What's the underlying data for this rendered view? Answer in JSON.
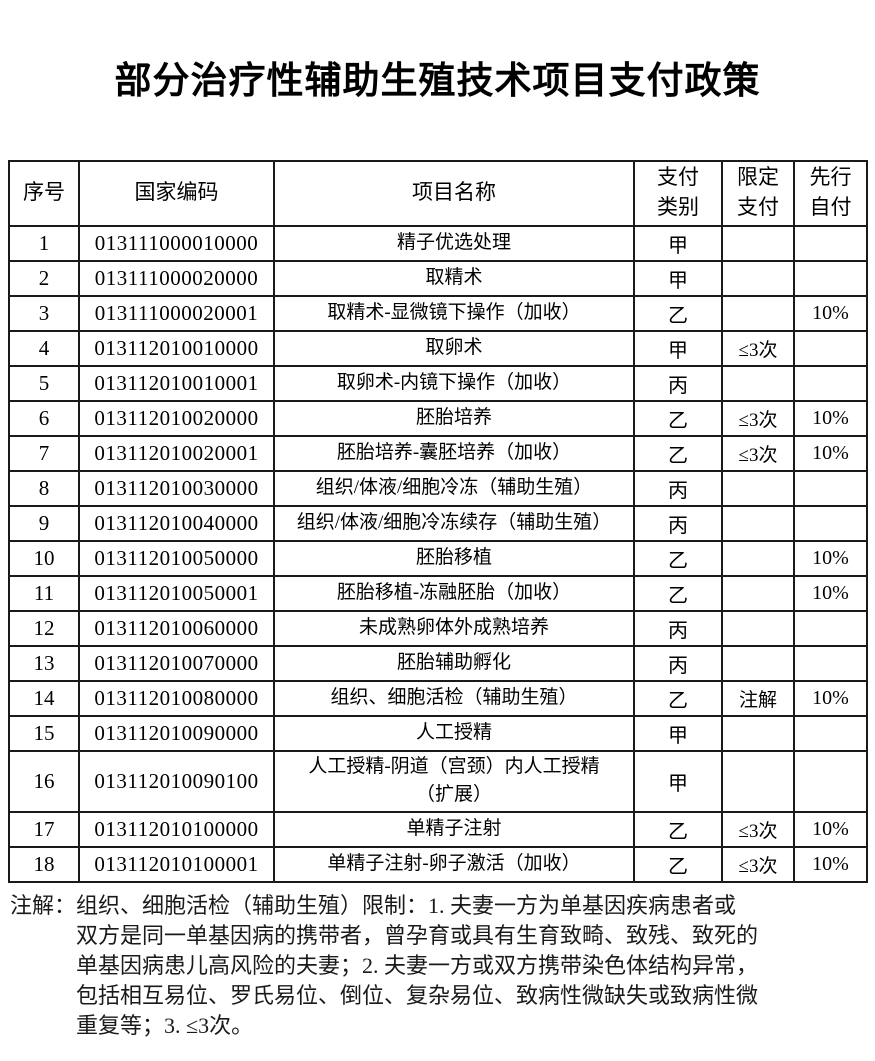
{
  "title": "部分治疗性辅助生殖技术项目支付政策",
  "table": {
    "headers": [
      "序号",
      "国家编码",
      "项目名称",
      "支付\n类别",
      "限定\n支付",
      "先行\n自付"
    ],
    "rows": [
      {
        "no": "1",
        "code": "013111000010000",
        "name": "精子优选处理",
        "pay_class": "甲",
        "limit": "",
        "self_pay": ""
      },
      {
        "no": "2",
        "code": "013111000020000",
        "name": "取精术",
        "pay_class": "甲",
        "limit": "",
        "self_pay": ""
      },
      {
        "no": "3",
        "code": "013111000020001",
        "name": "取精术-显微镜下操作（加收）",
        "pay_class": "乙",
        "limit": "",
        "self_pay": "10%"
      },
      {
        "no": "4",
        "code": "013112010010000",
        "name": "取卵术",
        "pay_class": "甲",
        "limit": "≤3次",
        "self_pay": ""
      },
      {
        "no": "5",
        "code": "013112010010001",
        "name": "取卵术-内镜下操作（加收）",
        "pay_class": "丙",
        "limit": "",
        "self_pay": ""
      },
      {
        "no": "6",
        "code": "013112010020000",
        "name": "胚胎培养",
        "pay_class": "乙",
        "limit": "≤3次",
        "self_pay": "10%"
      },
      {
        "no": "7",
        "code": "013112010020001",
        "name": "胚胎培养-囊胚培养（加收）",
        "pay_class": "乙",
        "limit": "≤3次",
        "self_pay": "10%"
      },
      {
        "no": "8",
        "code": "013112010030000",
        "name": "组织/体液/细胞冷冻（辅助生殖）",
        "pay_class": "丙",
        "limit": "",
        "self_pay": ""
      },
      {
        "no": "9",
        "code": "013112010040000",
        "name": "组织/体液/细胞冷冻续存（辅助生殖）",
        "pay_class": "丙",
        "limit": "",
        "self_pay": ""
      },
      {
        "no": "10",
        "code": "013112010050000",
        "name": "胚胎移植",
        "pay_class": "乙",
        "limit": "",
        "self_pay": "10%"
      },
      {
        "no": "11",
        "code": "013112010050001",
        "name": "胚胎移植-冻融胚胎（加收）",
        "pay_class": "乙",
        "limit": "",
        "self_pay": "10%"
      },
      {
        "no": "12",
        "code": "013112010060000",
        "name": "未成熟卵体外成熟培养",
        "pay_class": "丙",
        "limit": "",
        "self_pay": ""
      },
      {
        "no": "13",
        "code": "013112010070000",
        "name": "胚胎辅助孵化",
        "pay_class": "丙",
        "limit": "",
        "self_pay": ""
      },
      {
        "no": "14",
        "code": "013112010080000",
        "name": "组织、细胞活检（辅助生殖）",
        "pay_class": "乙",
        "limit": "注解",
        "self_pay": "10%"
      },
      {
        "no": "15",
        "code": "013112010090000",
        "name": "人工授精",
        "pay_class": "甲",
        "limit": "",
        "self_pay": ""
      },
      {
        "no": "16",
        "code": "013112010090100",
        "name": "人工授精-阴道（宫颈）内人工授精\n（扩展）",
        "pay_class": "甲",
        "limit": "",
        "self_pay": ""
      },
      {
        "no": "17",
        "code": "013112010100000",
        "name": "单精子注射",
        "pay_class": "乙",
        "limit": "≤3次",
        "self_pay": "10%"
      },
      {
        "no": "18",
        "code": "013112010100001",
        "name": "单精子注射-卵子激活（加收）",
        "pay_class": "乙",
        "limit": "≤3次",
        "self_pay": "10%"
      }
    ]
  },
  "note": {
    "label": "注解：",
    "text": "组织、细胞活检（辅助生殖）限制：1. 夫妻一方为单基因疾病患者或\n双方是同一单基因病的携带者，曾孕育或具有生育致畸、致残、致死的\n单基因病患儿高风险的夫妻；2. 夫妻一方或双方携带染色体结构异常，\n包括相互易位、罗氏易位、倒位、复杂易位、致病性微缺失或致病性微\n重复等；3. ≤3次。"
  }
}
